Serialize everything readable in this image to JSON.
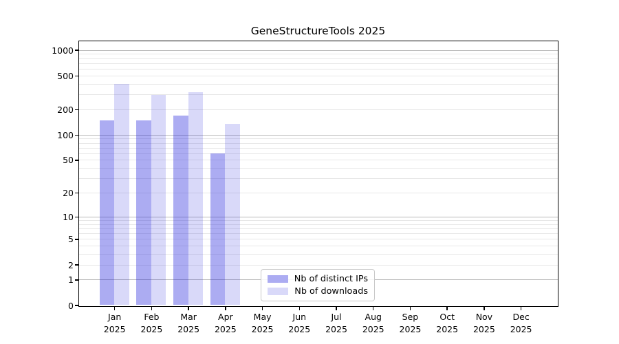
{
  "chart_data": {
    "type": "bar",
    "title": "GeneStructureTools 2025",
    "categories": [
      "Jan",
      "Feb",
      "Mar",
      "Apr",
      "May",
      "Jun",
      "Jul",
      "Aug",
      "Sep",
      "Oct",
      "Nov",
      "Dec"
    ],
    "category_year": "2025",
    "series": [
      {
        "name": "Nb of distinct IPs",
        "hex": "#acacf2",
        "fill": "rgba(30,30,220,0.37)",
        "values": [
          149,
          147,
          168,
          60,
          0,
          0,
          0,
          0,
          0,
          0,
          0,
          0
        ]
      },
      {
        "name": "Nb of downloads",
        "hex": "#d9d9f9",
        "fill": "rgba(30,30,220,0.17)",
        "values": [
          398,
          297,
          318,
          134,
          0,
          0,
          0,
          0,
          0,
          0,
          0,
          0
        ]
      }
    ],
    "y_scale": "log1p",
    "ylim": [
      0,
      1280
    ],
    "y_ticks": [
      0,
      1,
      2,
      5,
      10,
      20,
      50,
      100,
      200,
      500,
      1000
    ],
    "y_major_gridlines": [
      1,
      10,
      100,
      1000
    ],
    "y_minor_gridlines": [
      2,
      3,
      4,
      5,
      6,
      7,
      8,
      9,
      20,
      30,
      40,
      50,
      60,
      70,
      80,
      90,
      200,
      300,
      400,
      500,
      600,
      700,
      800,
      900
    ],
    "grid": true,
    "legend_position": "bottom-center",
    "colors": {
      "major_grid": "#b8b8b8",
      "minor_grid": "#e7e7e7",
      "spine": "#000000",
      "background": "#ffffff"
    }
  }
}
